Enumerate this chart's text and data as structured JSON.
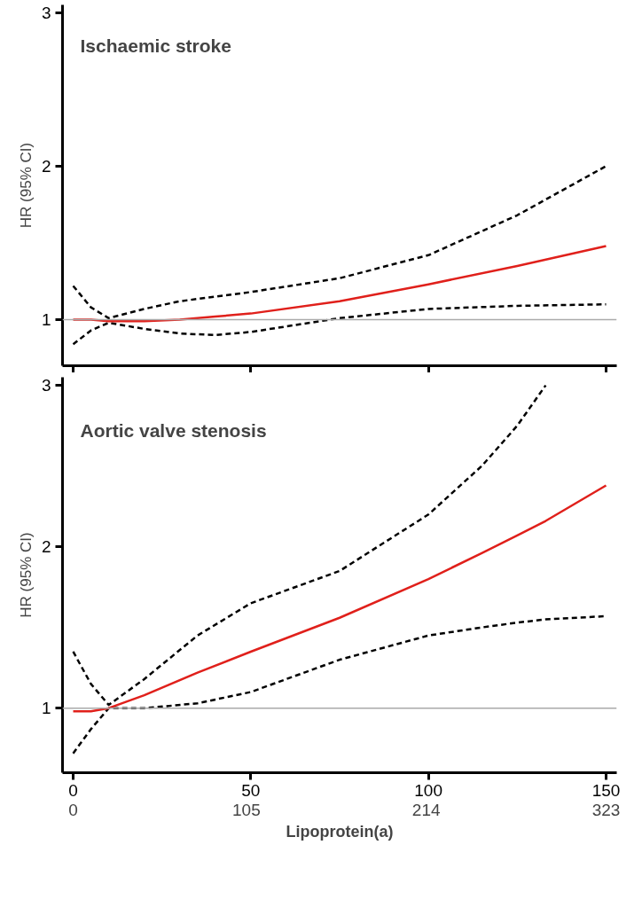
{
  "chart_data": [
    {
      "type": "line",
      "title": "Ischaemic stroke",
      "ylabel": "HR (95% CI)",
      "xlim": [
        -3,
        153
      ],
      "ylim": [
        0.7,
        3.05
      ],
      "xticks": [
        0,
        50,
        100,
        150
      ],
      "yticks": [
        1,
        2,
        3
      ],
      "tick_labels": "y",
      "grid": false,
      "ref_lines": [
        {
          "axis": "y",
          "value": 1,
          "color": "#aaaaaa"
        }
      ],
      "x": [
        0,
        5,
        10,
        20,
        30,
        40,
        50,
        75,
        100,
        125,
        150
      ],
      "series": [
        {
          "color": "#000000",
          "line_style": "dashed",
          "values": [
            1.22,
            1.08,
            1.01,
            1.07,
            1.12,
            1.15,
            1.18,
            1.27,
            1.42,
            1.68,
            2.0
          ]
        },
        {
          "color": "#000000",
          "line_style": "dashed",
          "values": [
            0.84,
            0.93,
            0.98,
            0.94,
            0.91,
            0.9,
            0.92,
            1.01,
            1.07,
            1.09,
            1.1
          ]
        },
        {
          "color": "#e0201b",
          "line_style": "solid",
          "values": [
            1.0,
            1.0,
            0.99,
            0.99,
            1.0,
            1.02,
            1.04,
            1.12,
            1.23,
            1.35,
            1.48
          ]
        }
      ]
    },
    {
      "type": "line",
      "title": "Aortic valve stenosis",
      "ylabel": "HR (95% CI)",
      "xlabel": "Lipoprotein(a)",
      "xlim": [
        -3,
        153
      ],
      "ylim": [
        0.6,
        3.05
      ],
      "xticks": [
        0,
        50,
        100,
        150
      ],
      "x2lim": [
        -6.46,
        329.46
      ],
      "x2ticks": [
        0,
        105,
        214,
        323
      ],
      "yticks": [
        1,
        2,
        3
      ],
      "grid": false,
      "ref_lines": [
        {
          "axis": "y",
          "value": 1,
          "color": "#aaaaaa"
        }
      ],
      "x": [
        0,
        5,
        10,
        20,
        35,
        50,
        75,
        100,
        115,
        125,
        133,
        150
      ],
      "series": [
        {
          "color": "#000000",
          "line_style": "dashed",
          "values": [
            1.35,
            1.15,
            1.02,
            1.18,
            1.45,
            1.65,
            1.85,
            2.2,
            2.5,
            2.75,
            3.0,
            null
          ]
        },
        {
          "color": "#000000",
          "line_style": "dashed",
          "values": [
            0.72,
            0.87,
            1.0,
            1.0,
            1.03,
            1.1,
            1.3,
            1.45,
            1.5,
            1.53,
            1.55,
            1.57
          ]
        },
        {
          "color": "#e0201b",
          "line_style": "solid",
          "values": [
            0.98,
            0.98,
            1.0,
            1.08,
            1.22,
            1.35,
            1.56,
            1.8,
            1.96,
            2.07,
            2.16,
            2.38
          ]
        }
      ]
    }
  ]
}
